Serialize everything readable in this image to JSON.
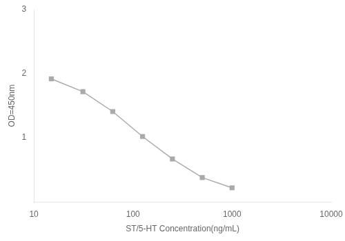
{
  "chart_data": {
    "type": "line",
    "x": [
      15,
      31.25,
      62.5,
      125,
      250,
      500,
      1000
    ],
    "values": [
      1.92,
      1.72,
      1.41,
      1.02,
      0.67,
      0.38,
      0.22
    ],
    "xlabel": "ST/5-HT Concentration(ng/mL)",
    "ylabel": "OD=450nm",
    "xlim": [
      10,
      10000
    ],
    "ylim": [
      0,
      3
    ],
    "xticks": [
      10,
      100,
      1000,
      10000
    ],
    "yticks": [
      1,
      2,
      3
    ],
    "log": "x",
    "grid": false,
    "color": "#aaaaaa",
    "marker": "square",
    "line_style": "solid"
  }
}
